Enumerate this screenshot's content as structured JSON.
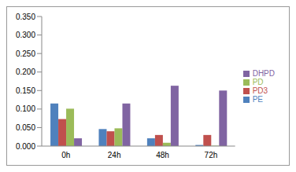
{
  "chart_data": {
    "type": "bar",
    "categories": [
      "0h",
      "24h",
      "48h",
      "72h"
    ],
    "series": [
      {
        "name": "PE",
        "color": "#4f81bd",
        "values": [
          0.115,
          0.046,
          0.021,
          0.003
        ]
      },
      {
        "name": "PD3",
        "color": "#c0504d",
        "values": [
          0.073,
          0.04,
          0.03,
          0.03
        ]
      },
      {
        "name": "PD",
        "color": "#9bbb59",
        "values": [
          0.101,
          0.048,
          0.009,
          0.001
        ]
      },
      {
        "name": "DHPD",
        "color": "#8064a2",
        "values": [
          0.021,
          0.115,
          0.163,
          0.15
        ]
      }
    ],
    "ylim": [
      0,
      0.35
    ],
    "yticks": [
      {
        "value": 0,
        "label": "0.000"
      },
      {
        "value": 0.05,
        "label": "0.050"
      },
      {
        "value": 0.1,
        "label": "0.100"
      },
      {
        "value": 0.15,
        "label": "0.150"
      },
      {
        "value": 0.2,
        "label": "0.200"
      },
      {
        "value": 0.25,
        "label": "0.250"
      },
      {
        "value": 0.3,
        "label": "0.300"
      },
      {
        "value": 0.35,
        "label": "0.350"
      }
    ],
    "grid": false,
    "legend": "right"
  }
}
